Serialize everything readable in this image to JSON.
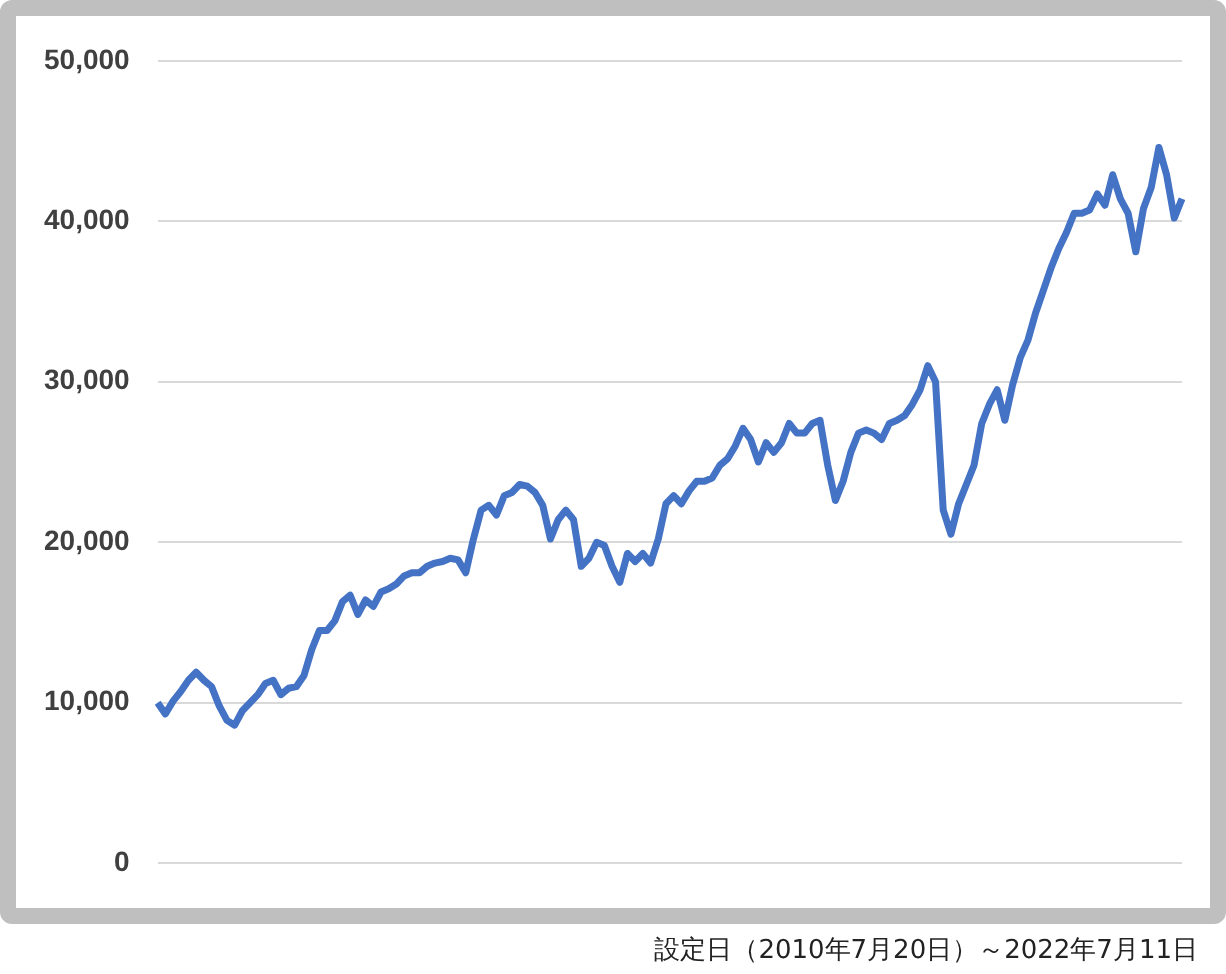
{
  "chart_data": {
    "type": "line",
    "annotations": [
      "設定日（2010年7月20日）～2022年7月11日"
    ],
    "categories": [
      null,
      null,
      null,
      null,
      null,
      null,
      null,
      null,
      null,
      null,
      null,
      null,
      null,
      null,
      null,
      null,
      null,
      null,
      null,
      null,
      null,
      null,
      null,
      null,
      null,
      null,
      null,
      null,
      null,
      null,
      null,
      null,
      null,
      null,
      null,
      null,
      null,
      null,
      null,
      null,
      null,
      null,
      null,
      null,
      null,
      null,
      null,
      null,
      null,
      null,
      null,
      null,
      null,
      null,
      null,
      null,
      null,
      null,
      null,
      null,
      null,
      null,
      null,
      null,
      null,
      null,
      null,
      null,
      null,
      null,
      null,
      null,
      null,
      null,
      null,
      null,
      null,
      null,
      null,
      null,
      null,
      null,
      null,
      null,
      null,
      null,
      null,
      null,
      null,
      null,
      null,
      null,
      null,
      null,
      null,
      null,
      null,
      null,
      null,
      null,
      null,
      null,
      null,
      null,
      null,
      null,
      null,
      null,
      null,
      null,
      null,
      null,
      null,
      null,
      null,
      null,
      null,
      null,
      null,
      null,
      null,
      null,
      null,
      null,
      null,
      null,
      null,
      null,
      null,
      null,
      null,
      null,
      null,
      null
    ],
    "series": [
      {
        "color": "#4472c4",
        "values": [
          10000,
          9300,
          10100,
          10700,
          11400,
          11900,
          11400,
          11000,
          9800,
          8900,
          8600,
          9500,
          10000,
          10500,
          11200,
          11400,
          10500,
          10900,
          11000,
          11700,
          13300,
          14500,
          14500,
          15100,
          16300,
          16700,
          15500,
          16400,
          16000,
          16900,
          17100,
          17400,
          17900,
          18100,
          18100,
          18500,
          18700,
          18800,
          19000,
          18900,
          18100,
          20200,
          22000,
          22300,
          21700,
          22900,
          23100,
          23600,
          23500,
          23100,
          22300,
          20200,
          21400,
          22000,
          21400,
          18500,
          19000,
          20000,
          19800,
          18500,
          17500,
          19300,
          18800,
          19300,
          18700,
          20200,
          22400,
          22900,
          22400,
          23200,
          23800,
          23800,
          24000,
          24800,
          25200,
          26000,
          27100,
          26400,
          25000,
          26200,
          25600,
          26200,
          27400,
          26800,
          26800,
          27400,
          27600,
          24800,
          22600,
          23800,
          25600,
          26800,
          27000,
          26800,
          26400,
          27400,
          27600,
          27900,
          28600,
          29500,
          31000,
          30000,
          22000,
          20500,
          22400,
          23600,
          24800,
          27400,
          28600,
          29500,
          27600,
          29800,
          31500,
          32600,
          34300,
          35700,
          37100,
          38300,
          39300,
          40500,
          40500,
          40700,
          41700,
          41000,
          42900,
          41400,
          40500,
          38100,
          40800,
          42100,
          44600,
          42900,
          40200,
          41400
        ]
      }
    ],
    "ylim": [
      0,
      50000
    ],
    "yticks": [
      0,
      {
        "value": 10000,
        "label": "10,000"
      },
      {
        "value": 20000,
        "label": "20,000"
      },
      {
        "value": 30000,
        "label": "30,000"
      },
      {
        "value": 40000,
        "label": "40,000"
      },
      {
        "value": 50000,
        "label": "50,000"
      }
    ],
    "grid": "y",
    "tick_labels": "y",
    "marker": "none",
    "line_style": "solid",
    "legend": false
  }
}
